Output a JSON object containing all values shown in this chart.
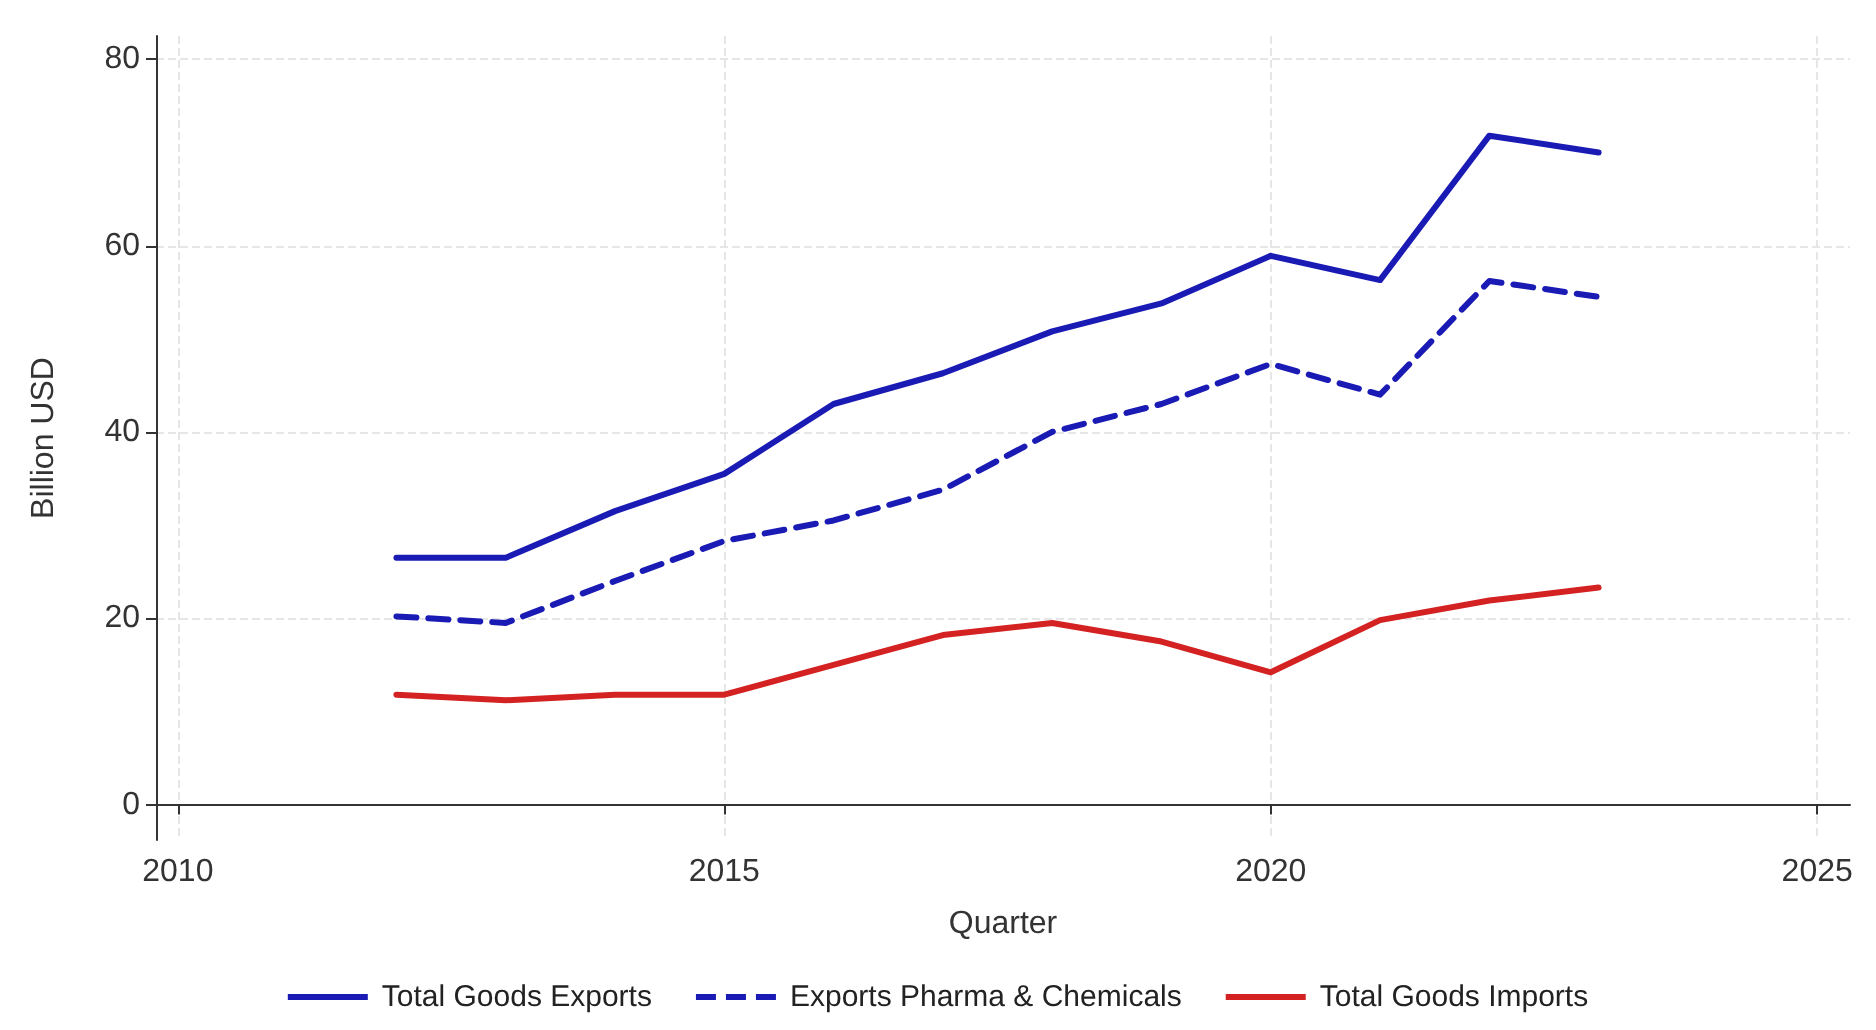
{
  "chart_data": {
    "type": "line",
    "xlabel": "Quarter",
    "ylabel": "Billion USD",
    "x": [
      2012,
      2013,
      2014,
      2015,
      2016,
      2017,
      2018,
      2019,
      2020,
      2021,
      2022,
      2023
    ],
    "series": [
      {
        "name": "Total Goods Exports",
        "color": "#1a1ab4",
        "line_style": "solid",
        "values": [
          26.5,
          26.5,
          31.5,
          35.5,
          43,
          46.3,
          50.8,
          53.8,
          58.9,
          56.3,
          71.8,
          70
        ]
      },
      {
        "name": "Exports Pharma & Chemicals",
        "color": "#1a1ab4",
        "line_style": "dashed",
        "values": [
          20.2,
          19.5,
          24,
          28.3,
          30.5,
          33.8,
          40,
          43,
          47.3,
          44,
          56.2,
          54.5
        ]
      },
      {
        "name": "Total Goods Imports",
        "color": "#d42222",
        "line_style": "solid",
        "values": [
          11.8,
          11.2,
          11.8,
          11.8,
          15,
          18.2,
          19.5,
          17.5,
          14.2,
          19.8,
          21.9,
          23.3
        ]
      }
    ],
    "xlim": [
      2009.8,
      2025.3
    ],
    "xticks": [
      2010,
      2015,
      2020,
      2025
    ],
    "ylim": [
      -3.8,
      82.5
    ],
    "yticks": [
      0,
      20,
      40,
      60,
      80
    ],
    "grid": true,
    "legend": "bottom",
    "marker": "none"
  }
}
